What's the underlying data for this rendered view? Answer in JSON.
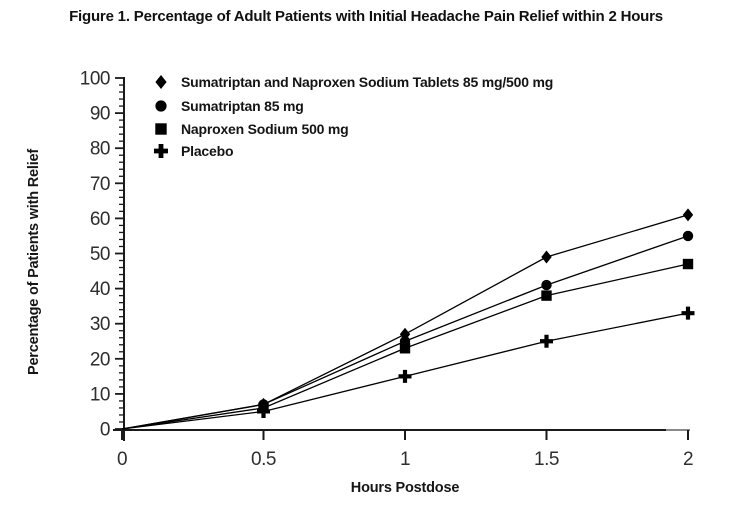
{
  "title": "Figure 1. Percentage of Adult Patients with Initial Headache Pain Relief within 2 Hours",
  "chart_data": {
    "type": "line",
    "title": "Figure 1. Percentage of Adult Patients with Initial Headache Pain Relief within 2 Hours",
    "xlabel": "Hours Postdose",
    "ylabel": "Percentage of Patients with Relief",
    "xlim": [
      0,
      2
    ],
    "ylim": [
      0,
      100
    ],
    "x": [
      0,
      0.5,
      1,
      1.5,
      2
    ],
    "x_tick_labels": [
      "0",
      "0.5",
      "1",
      "1.5",
      "2"
    ],
    "y_major_ticks": [
      0,
      10,
      20,
      30,
      40,
      50,
      60,
      70,
      80,
      90,
      100
    ],
    "y_tick_labels": [
      "0",
      "10",
      "20",
      "30",
      "40",
      "50",
      "60",
      "70",
      "80",
      "90",
      "100"
    ],
    "y_minor_step": 2,
    "grid": false,
    "legend_position": "top-left-inside",
    "series": [
      {
        "name": "Sumatriptan and Naproxen Sodium Tablets 85 mg/500 mg",
        "marker": "diamond",
        "values": [
          0,
          7,
          27,
          49,
          61
        ]
      },
      {
        "name": "Sumatriptan 85 mg",
        "marker": "circle",
        "values": [
          0,
          7,
          25,
          41,
          55
        ]
      },
      {
        "name": "Naproxen Sodium 500 mg",
        "marker": "square",
        "values": [
          0,
          6,
          23,
          38,
          47
        ]
      },
      {
        "name": "Placebo",
        "marker": "plus",
        "values": [
          0,
          5,
          15,
          25,
          33
        ]
      }
    ],
    "colors": {
      "series": "#000000",
      "axis": "#1a1a1a",
      "axis_end_segment": "#8a8a8a",
      "tick_text": "#2e2e2e",
      "label_text": "#141414",
      "background": "#ffffff"
    }
  }
}
